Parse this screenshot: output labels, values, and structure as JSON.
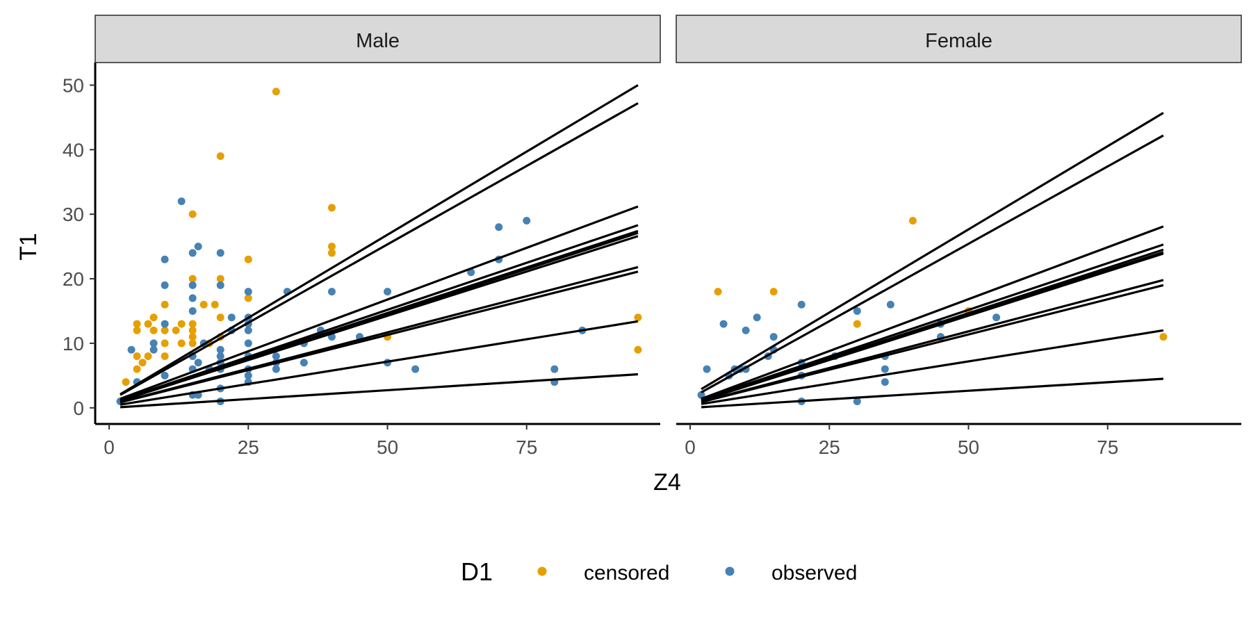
{
  "chart_data": {
    "type": "scatter",
    "x_label": "Z4",
    "y_label": "T1",
    "x_ticks": [
      0,
      25,
      50,
      75
    ],
    "y_ticks": [
      0,
      10,
      20,
      30,
      40,
      50
    ],
    "xlim": [
      -2.5,
      99
    ],
    "ylim": [
      -2.5,
      53.5
    ],
    "grid": false,
    "legend": {
      "title": "D1",
      "position": "bottom",
      "entries": [
        {
          "label": "censored",
          "color": "#E69F00"
        },
        {
          "label": "observed",
          "color": "#4682B4"
        }
      ]
    },
    "panels": [
      {
        "strip_label": "Male",
        "lines": [
          {
            "x0": 2,
            "y0": 2.1,
            "x1": 95,
            "y1": 50.0
          },
          {
            "x0": 2,
            "y0": 2.0,
            "x1": 95,
            "y1": 47.2
          },
          {
            "x0": 2,
            "y0": 1.4,
            "x1": 95,
            "y1": 31.2
          },
          {
            "x0": 2,
            "y0": 1.2,
            "x1": 95,
            "y1": 28.3
          },
          {
            "x0": 2,
            "y0": 1.15,
            "x1": 95,
            "y1": 27.4
          },
          {
            "x0": 2,
            "y0": 1.1,
            "x1": 95,
            "y1": 27.1
          },
          {
            "x0": 2,
            "y0": 1.1,
            "x1": 95,
            "y1": 26.6
          },
          {
            "x0": 2,
            "y0": 0.9,
            "x1": 95,
            "y1": 21.8
          },
          {
            "x0": 2,
            "y0": 0.85,
            "x1": 95,
            "y1": 21.1
          },
          {
            "x0": 2,
            "y0": 0.5,
            "x1": 95,
            "y1": 13.4
          },
          {
            "x0": 2,
            "y0": 0.1,
            "x1": 95,
            "y1": 5.2
          }
        ],
        "censored": [
          [
            3,
            4
          ],
          [
            5,
            13
          ],
          [
            5,
            12
          ],
          [
            5,
            8
          ],
          [
            5,
            6
          ],
          [
            6,
            7
          ],
          [
            7,
            13
          ],
          [
            7,
            8
          ],
          [
            8,
            14
          ],
          [
            10,
            16
          ],
          [
            10,
            12
          ],
          [
            10,
            10
          ],
          [
            10,
            8
          ],
          [
            12,
            12
          ],
          [
            13,
            13
          ],
          [
            13,
            10
          ],
          [
            15,
            30
          ],
          [
            15,
            20
          ],
          [
            15,
            13
          ],
          [
            15,
            12
          ],
          [
            15,
            11
          ],
          [
            15,
            10
          ],
          [
            17,
            16
          ],
          [
            19,
            16
          ],
          [
            20,
            39
          ],
          [
            20,
            20
          ],
          [
            20,
            14
          ],
          [
            20,
            11
          ],
          [
            25,
            23
          ],
          [
            25,
            17
          ],
          [
            25,
            8
          ],
          [
            30,
            49
          ],
          [
            40,
            31
          ],
          [
            40,
            25
          ],
          [
            40,
            24
          ],
          [
            50,
            11
          ],
          [
            95,
            14
          ],
          [
            95,
            9
          ],
          [
            8,
            12
          ],
          [
            18,
            10
          ]
        ],
        "observed": [
          [
            2,
            1
          ],
          [
            4,
            9
          ],
          [
            5,
            4
          ],
          [
            8,
            10
          ],
          [
            8,
            9
          ],
          [
            10,
            23
          ],
          [
            10,
            19
          ],
          [
            10,
            13
          ],
          [
            10,
            5
          ],
          [
            13,
            32
          ],
          [
            15,
            24
          ],
          [
            15,
            19
          ],
          [
            15,
            17
          ],
          [
            15,
            15
          ],
          [
            15,
            8
          ],
          [
            15,
            6
          ],
          [
            15,
            2
          ],
          [
            16,
            25
          ],
          [
            16,
            7
          ],
          [
            16,
            2
          ],
          [
            17,
            10
          ],
          [
            18,
            6
          ],
          [
            20,
            24
          ],
          [
            20,
            19
          ],
          [
            20,
            9
          ],
          [
            20,
            8
          ],
          [
            20,
            7
          ],
          [
            20,
            6
          ],
          [
            20,
            3
          ],
          [
            20,
            1
          ],
          [
            22,
            14
          ],
          [
            22,
            12
          ],
          [
            25,
            18
          ],
          [
            25,
            14
          ],
          [
            25,
            13
          ],
          [
            25,
            12
          ],
          [
            25,
            10
          ],
          [
            25,
            8
          ],
          [
            25,
            6
          ],
          [
            25,
            5
          ],
          [
            25,
            4
          ],
          [
            30,
            8
          ],
          [
            30,
            7
          ],
          [
            30,
            6
          ],
          [
            32,
            18
          ],
          [
            35,
            10
          ],
          [
            35,
            7
          ],
          [
            38,
            12
          ],
          [
            40,
            18
          ],
          [
            40,
            11
          ],
          [
            45,
            11
          ],
          [
            50,
            18
          ],
          [
            50,
            7
          ],
          [
            55,
            6
          ],
          [
            65,
            21
          ],
          [
            70,
            28
          ],
          [
            70,
            23
          ],
          [
            75,
            29
          ],
          [
            80,
            6
          ],
          [
            80,
            4
          ],
          [
            85,
            12
          ]
        ]
      },
      {
        "strip_label": "Female",
        "lines": [
          {
            "x0": 2,
            "y0": 2.9,
            "x1": 85,
            "y1": 45.7
          },
          {
            "x0": 2,
            "y0": 2.4,
            "x1": 85,
            "y1": 42.2
          },
          {
            "x0": 2,
            "y0": 1.4,
            "x1": 85,
            "y1": 28.1
          },
          {
            "x0": 2,
            "y0": 1.3,
            "x1": 85,
            "y1": 25.3
          },
          {
            "x0": 2,
            "y0": 1.2,
            "x1": 85,
            "y1": 24.5
          },
          {
            "x0": 2,
            "y0": 1.15,
            "x1": 85,
            "y1": 24.1
          },
          {
            "x0": 2,
            "y0": 1.1,
            "x1": 85,
            "y1": 23.9
          },
          {
            "x0": 2,
            "y0": 0.95,
            "x1": 85,
            "y1": 19.8
          },
          {
            "x0": 2,
            "y0": 0.9,
            "x1": 85,
            "y1": 19.0
          },
          {
            "x0": 2,
            "y0": 0.6,
            "x1": 85,
            "y1": 12.0
          },
          {
            "x0": 2,
            "y0": 0.1,
            "x1": 85,
            "y1": 4.5
          }
        ],
        "censored": [
          [
            5,
            18
          ],
          [
            15,
            18
          ],
          [
            30,
            13
          ],
          [
            40,
            29
          ],
          [
            50,
            15
          ],
          [
            85,
            11
          ]
        ],
        "observed": [
          [
            2,
            2
          ],
          [
            3,
            6
          ],
          [
            6,
            13
          ],
          [
            7,
            5
          ],
          [
            8,
            6
          ],
          [
            9,
            6
          ],
          [
            10,
            12
          ],
          [
            10,
            6
          ],
          [
            12,
            14
          ],
          [
            14,
            8
          ],
          [
            15,
            11
          ],
          [
            15,
            9
          ],
          [
            20,
            16
          ],
          [
            20,
            7
          ],
          [
            20,
            5
          ],
          [
            20,
            1
          ],
          [
            26,
            8
          ],
          [
            30,
            15
          ],
          [
            30,
            1
          ],
          [
            35,
            8
          ],
          [
            35,
            6
          ],
          [
            35,
            4
          ],
          [
            36,
            16
          ],
          [
            45,
            13
          ],
          [
            45,
            11
          ],
          [
            55,
            14
          ]
        ]
      }
    ]
  }
}
